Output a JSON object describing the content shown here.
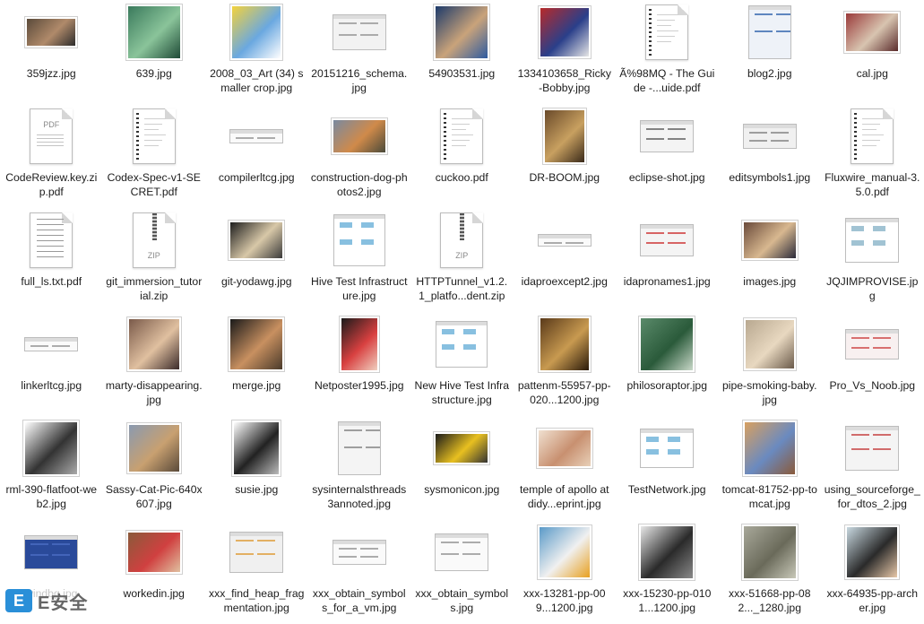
{
  "files": [
    {
      "name": "359jzz.jpg",
      "icon": "image",
      "colors": [
        "#5a4a3a",
        "#b08a6a",
        "#2c2c2c"
      ],
      "w": 54,
      "h": 30
    },
    {
      "name": "639.jpg",
      "icon": "image",
      "colors": [
        "#3a7a5c",
        "#8ac49a",
        "#1e4a36"
      ],
      "w": 58,
      "h": 58
    },
    {
      "name": "2008_03_Art (34) smaller crop.jpg",
      "icon": "image",
      "colors": [
        "#f4d23c",
        "#6aa8e0",
        "#ffffff"
      ],
      "w": 54,
      "h": 58
    },
    {
      "name": "20151216_schema.jpg",
      "icon": "screenshot",
      "colors": [
        "#f2f2f2",
        "#999999",
        "#ffffff"
      ],
      "w": 58,
      "h": 38
    },
    {
      "name": "54903531.jpg",
      "icon": "image",
      "colors": [
        "#1c3a6a",
        "#c9a37a",
        "#2d5aa0"
      ],
      "w": 58,
      "h": 58
    },
    {
      "name": "1334103658_Ricky-Bobby.jpg",
      "icon": "image",
      "colors": [
        "#b82a2a",
        "#2a3f8a",
        "#e6e6e6"
      ],
      "w": 54,
      "h": 54
    },
    {
      "name": "Ã%98MQ - The Guide -...uide.pdf",
      "icon": "doc-binder",
      "colors": [
        "#ffffff",
        "#cccccc",
        "#333333"
      ],
      "w": 46,
      "h": 60
    },
    {
      "name": "blog2.jpg",
      "icon": "screenshot",
      "colors": [
        "#eef2f8",
        "#3a6ab0",
        "#ffffff"
      ],
      "w": 46,
      "h": 58
    },
    {
      "name": "cal.jpg",
      "icon": "image",
      "colors": [
        "#9a3a3a",
        "#d8c4b0",
        "#5a2a2a"
      ],
      "w": 58,
      "h": 42
    },
    {
      "name": "CodeReview.key.zip.pdf",
      "icon": "doc-pdf",
      "colors": [
        "#ffffff",
        "#cccccc",
        "#333333"
      ],
      "w": 46,
      "h": 60
    },
    {
      "name": "Codex-Spec-v1-SECRET.pdf",
      "icon": "doc-binder",
      "colors": [
        "#ffffff",
        "#cccccc",
        "#333333"
      ],
      "w": 46,
      "h": 60
    },
    {
      "name": "compilerltcg.jpg",
      "icon": "screenshot",
      "colors": [
        "#fafafa",
        "#999999",
        "#ffffff"
      ],
      "w": 58,
      "h": 14
    },
    {
      "name": "construction-dog-photos2.jpg",
      "icon": "image",
      "colors": [
        "#7a8aa0",
        "#d08a4a",
        "#4a4a3a"
      ],
      "w": 58,
      "h": 36
    },
    {
      "name": "cuckoo.pdf",
      "icon": "doc-binder",
      "colors": [
        "#ffffff",
        "#cccccc",
        "#333333"
      ],
      "w": 46,
      "h": 60
    },
    {
      "name": "DR-BOOM.jpg",
      "icon": "image",
      "colors": [
        "#6a4a2a",
        "#c8a060",
        "#3a2a1a"
      ],
      "w": 44,
      "h": 58
    },
    {
      "name": "eclipse-shot.jpg",
      "icon": "screenshot",
      "colors": [
        "#f4f4f4",
        "#666666",
        "#ffffff"
      ],
      "w": 58,
      "h": 34
    },
    {
      "name": "editsymbols1.jpg",
      "icon": "screenshot",
      "colors": [
        "#f0f0f0",
        "#888888",
        "#ffffff"
      ],
      "w": 58,
      "h": 26
    },
    {
      "name": "Fluxwire_manual-3.5.0.pdf",
      "icon": "doc-binder",
      "colors": [
        "#ffffff",
        "#cccccc",
        "#333333"
      ],
      "w": 46,
      "h": 60
    },
    {
      "name": "full_ls.txt.pdf",
      "icon": "doc-lines",
      "colors": [
        "#ffffff",
        "#cccccc",
        "#333333"
      ],
      "w": 46,
      "h": 60
    },
    {
      "name": "git_immersion_tutorial.zip",
      "icon": "zip",
      "colors": [
        "#ffffff",
        "#cccccc",
        "#333333"
      ],
      "w": 46,
      "h": 60
    },
    {
      "name": "git-yodawg.jpg",
      "icon": "image",
      "colors": [
        "#1e1e1e",
        "#d8c8a8",
        "#3a3a3a"
      ],
      "w": 58,
      "h": 40
    },
    {
      "name": "Hive Test Infrastructure.jpg",
      "icon": "diagram",
      "colors": [
        "#ffffff",
        "#6ab0d8",
        "#d86a6a"
      ],
      "w": 56,
      "h": 56
    },
    {
      "name": "HTTPTunnel_v1.2.1_platfo...dent.zip",
      "icon": "zip",
      "colors": [
        "#ffffff",
        "#cccccc",
        "#333333"
      ],
      "w": 46,
      "h": 60
    },
    {
      "name": "idaproexcept2.jpg",
      "icon": "screenshot",
      "colors": [
        "#fafafa",
        "#999999",
        "#ffffff"
      ],
      "w": 58,
      "h": 12
    },
    {
      "name": "idapronames1.jpg",
      "icon": "screenshot",
      "colors": [
        "#f4f4f4",
        "#d04040",
        "#ffffff"
      ],
      "w": 58,
      "h": 34
    },
    {
      "name": "images.jpg",
      "icon": "image",
      "colors": [
        "#6a4a3a",
        "#d8b890",
        "#2a2a3a"
      ],
      "w": 58,
      "h": 40
    },
    {
      "name": "JQJIMPROVISE.jpg",
      "icon": "diagram",
      "colors": [
        "#ffffff",
        "#8ab4c8",
        "#5a8aa0"
      ],
      "w": 58,
      "h": 48
    },
    {
      "name": "linkerltcg.jpg",
      "icon": "screenshot",
      "colors": [
        "#fafafa",
        "#999999",
        "#ffffff"
      ],
      "w": 58,
      "h": 14
    },
    {
      "name": "marty-disappearing.jpg",
      "icon": "image",
      "colors": [
        "#7a5a4a",
        "#e0c0a0",
        "#3a2a2a"
      ],
      "w": 56,
      "h": 56
    },
    {
      "name": "merge.jpg",
      "icon": "image",
      "colors": [
        "#1a1a1a",
        "#c89060",
        "#4a3a2a"
      ],
      "w": 58,
      "h": 56
    },
    {
      "name": "Netposter1995.jpg",
      "icon": "image",
      "colors": [
        "#1a1a1a",
        "#d84040",
        "#f0d0c0"
      ],
      "w": 40,
      "h": 58
    },
    {
      "name": "New Hive Test Infrastructure.jpg",
      "icon": "diagram",
      "colors": [
        "#ffffff",
        "#6ab0d8",
        "#d86a6a"
      ],
      "w": 56,
      "h": 50
    },
    {
      "name": "pattenm-55957-pp-020...1200.jpg",
      "icon": "image",
      "colors": [
        "#5a3a1a",
        "#c89a50",
        "#2a1a0a"
      ],
      "w": 54,
      "h": 58
    },
    {
      "name": "philosoraptor.jpg",
      "icon": "image",
      "colors": [
        "#5a8a6a",
        "#2a5a3a",
        "#c8d8c8"
      ],
      "w": 58,
      "h": 58
    },
    {
      "name": "pipe-smoking-baby.jpg",
      "icon": "image",
      "colors": [
        "#b8a890",
        "#e8d8c0",
        "#6a5a4a"
      ],
      "w": 54,
      "h": 54
    },
    {
      "name": "Pro_Vs_Noob.jpg",
      "icon": "screenshot",
      "colors": [
        "#f8f0f0",
        "#d05050",
        "#ffffff"
      ],
      "w": 58,
      "h": 32
    },
    {
      "name": "rml-390-flatfoot-web2.jpg",
      "icon": "image",
      "colors": [
        "#ffffff",
        "#333333",
        "#aaaaaa"
      ],
      "w": 58,
      "h": 58
    },
    {
      "name": "Sassy-Cat-Pic-640x607.jpg",
      "icon": "image",
      "colors": [
        "#8a9ab0",
        "#c8a070",
        "#5a4a3a"
      ],
      "w": 56,
      "h": 52
    },
    {
      "name": "susie.jpg",
      "icon": "image",
      "colors": [
        "#ffffff",
        "#222222",
        "#bbbbbb"
      ],
      "w": 50,
      "h": 58
    },
    {
      "name": "sysinternalsthreads3annoted.jpg",
      "icon": "screenshot",
      "colors": [
        "#f4f4f4",
        "#888888",
        "#ffffff"
      ],
      "w": 46,
      "h": 58
    },
    {
      "name": "sysmonicon.jpg",
      "icon": "image",
      "colors": [
        "#1a1a1a",
        "#e8c020",
        "#333333"
      ],
      "w": 58,
      "h": 32
    },
    {
      "name": "temple of apollo at didy...eprint.jpg",
      "icon": "image",
      "colors": [
        "#f0e0d0",
        "#c89070",
        "#e8d0b8"
      ],
      "w": 58,
      "h": 40
    },
    {
      "name": "TestNetwork.jpg",
      "icon": "diagram",
      "colors": [
        "#ffffff",
        "#6ab0d8",
        "#4a8ab8"
      ],
      "w": 58,
      "h": 42
    },
    {
      "name": "tomcat-81752-pp-tomcat.jpg",
      "icon": "image",
      "colors": [
        "#d8a060",
        "#6a8ac0",
        "#8a5a3a"
      ],
      "w": 56,
      "h": 58
    },
    {
      "name": "using_sourceforge_for_dtos_2.jpg",
      "icon": "screenshot",
      "colors": [
        "#f4f4f4",
        "#c84a4a",
        "#ffffff"
      ],
      "w": 58,
      "h": 48
    },
    {
      "name": "windbg.jpg",
      "icon": "screenshot",
      "colors": [
        "#2a4a9a",
        "#4a6ac0",
        "#ffffff"
      ],
      "w": 58,
      "h": 36
    },
    {
      "name": "workedin.jpg",
      "icon": "image",
      "colors": [
        "#8a5a3a",
        "#d04040",
        "#e0c0a0"
      ],
      "w": 58,
      "h": 44
    },
    {
      "name": "xxx_find_heap_fragmentation.jpg",
      "icon": "screenshot",
      "colors": [
        "#f0f0f0",
        "#e0a040",
        "#ffffff"
      ],
      "w": 58,
      "h": 44
    },
    {
      "name": "xxx_obtain_symbols_for_a_vm.jpg",
      "icon": "screenshot",
      "colors": [
        "#fafafa",
        "#999999",
        "#ffffff"
      ],
      "w": 58,
      "h": 26
    },
    {
      "name": "xxx_obtain_symbols.jpg",
      "icon": "screenshot",
      "colors": [
        "#fafafa",
        "#999999",
        "#ffffff"
      ],
      "w": 58,
      "h": 40
    },
    {
      "name": "xxx-13281-pp-009...1200.jpg",
      "icon": "image",
      "colors": [
        "#5a9ac8",
        "#f0f0f0",
        "#e8a020"
      ],
      "w": 56,
      "h": 56
    },
    {
      "name": "xxx-15230-pp-0101...1200.jpg",
      "icon": "image",
      "colors": [
        "#e8e8e8",
        "#2a2a2a",
        "#8a8a8a"
      ],
      "w": 58,
      "h": 58
    },
    {
      "name": "xxx-51668-pp-082..._1280.jpg",
      "icon": "image",
      "colors": [
        "#a8a89a",
        "#6a6a5a",
        "#c8c8b8"
      ],
      "w": 58,
      "h": 58
    },
    {
      "name": "xxx-64935-pp-archer.jpg",
      "icon": "image",
      "colors": [
        "#c8d8e0",
        "#2a2a2a",
        "#e8c8a8"
      ],
      "w": 56,
      "h": 56
    }
  ],
  "watermark": {
    "logo": "E",
    "text": "E安全"
  }
}
